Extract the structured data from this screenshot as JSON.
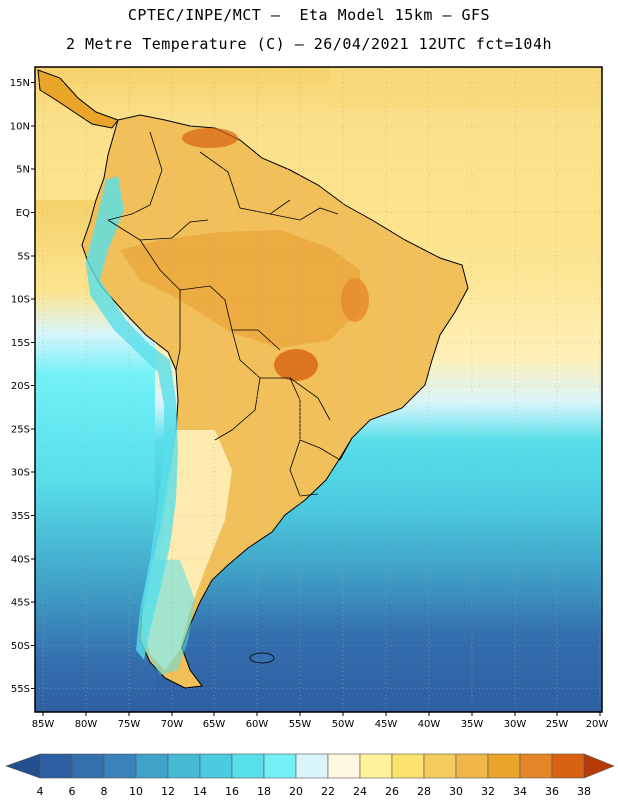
{
  "header": {
    "title_line1": "CPTEC/INPE/MCT –  Eta Model 15km – GFS",
    "title_line2": "2 Metre Temperature (C) – 26/04/2021 12UTC fct=104h"
  },
  "map": {
    "lat_labels": [
      "15N",
      "10N",
      "5N",
      "EQ",
      "5S",
      "10S",
      "15S",
      "20S",
      "25S",
      "30S",
      "35S",
      "40S",
      "45S",
      "50S",
      "55S"
    ],
    "lon_labels": [
      "85W",
      "80W",
      "75W",
      "70W",
      "65W",
      "60W",
      "55W",
      "50W",
      "45W",
      "40W",
      "35W",
      "30W",
      "25W",
      "20W"
    ],
    "gridlines": "dotted",
    "extent": {
      "lon_min": -86,
      "lon_max": -19,
      "lat_min": -58,
      "lat_max": 17
    }
  },
  "colorbar": {
    "labels": [
      "4",
      "6",
      "8",
      "10",
      "12",
      "14",
      "16",
      "18",
      "20",
      "22",
      "24",
      "26",
      "28",
      "30",
      "32",
      "34",
      "36",
      "38"
    ],
    "colors": [
      "#2e5fa2",
      "#346fae",
      "#3a82bb",
      "#40a2c8",
      "#47bad6",
      "#4ccbe0",
      "#57dfea",
      "#73f1f7",
      "#d9f5fb",
      "#fff7df",
      "#fff29a",
      "#fce36e",
      "#f5cd5c",
      "#efb64a",
      "#e9a42a",
      "#e48528",
      "#d86212",
      "#c44106"
    ],
    "underflow_color": "#24508f",
    "overflow_color": "#b83a06"
  }
}
